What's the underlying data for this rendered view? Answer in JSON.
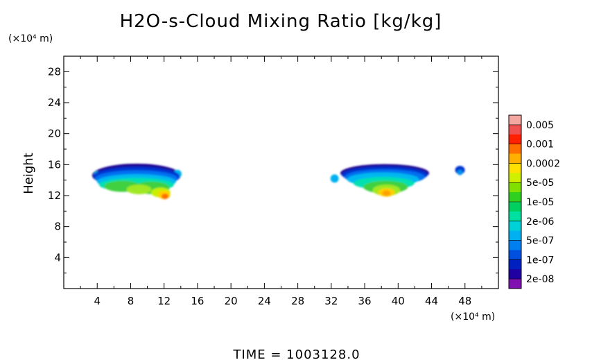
{
  "chart_data": {
    "type": "heatmap",
    "title": "H2O-s-Cloud Mixing Ratio [kg/kg]",
    "ylabel": "Height",
    "x_unit": "(×10⁴ m)",
    "y_unit": "(×10⁴ m)",
    "xlim": [
      0,
      52
    ],
    "ylim": [
      0,
      30
    ],
    "x_ticks": [
      "4",
      "8",
      "12",
      "16",
      "20",
      "24",
      "28",
      "32",
      "36",
      "40",
      "44",
      "48"
    ],
    "x_tick_values": [
      4,
      8,
      12,
      16,
      20,
      24,
      28,
      32,
      36,
      40,
      44,
      48
    ],
    "y_ticks": [
      "4",
      "8",
      "12",
      "16",
      "20",
      "24",
      "28"
    ],
    "y_tick_values": [
      4,
      8,
      12,
      16,
      20,
      24,
      28
    ],
    "legend": {
      "labels": [
        "0.005",
        "0.001",
        "0.0002",
        "5e-05",
        "1e-05",
        "2e-06",
        "5e-07",
        "1e-07",
        "2e-08"
      ],
      "colors_top_to_bottom": [
        "#f4a6a0",
        "#f05050",
        "#ff2000",
        "#ff7000",
        "#ffb000",
        "#ffe000",
        "#d0f000",
        "#80e000",
        "#30d020",
        "#00d060",
        "#00e0a0",
        "#00d0d8",
        "#00b0f0",
        "#0080f0",
        "#0050e0",
        "#0020c0",
        "#2000a0",
        "#8010b0"
      ]
    },
    "clouds": [
      {
        "x_range": [
          3.5,
          14
        ],
        "y_range": [
          11.5,
          17
        ],
        "peak_x": 12,
        "peak_y": 12,
        "peak_value": "0.0002"
      },
      {
        "x_range": [
          32,
          44
        ],
        "y_range": [
          11.5,
          16.5
        ],
        "peak_x": 38.5,
        "peak_y": 12.5,
        "peak_value": "0.0002"
      },
      {
        "x_range": [
          46.5,
          48
        ],
        "y_range": [
          14.5,
          16
        ],
        "peak_x": 47.5,
        "peak_y": 15.5,
        "peak_value": "1e-07"
      }
    ]
  },
  "footer": {
    "time_text": "TIME =  1003128.0"
  }
}
